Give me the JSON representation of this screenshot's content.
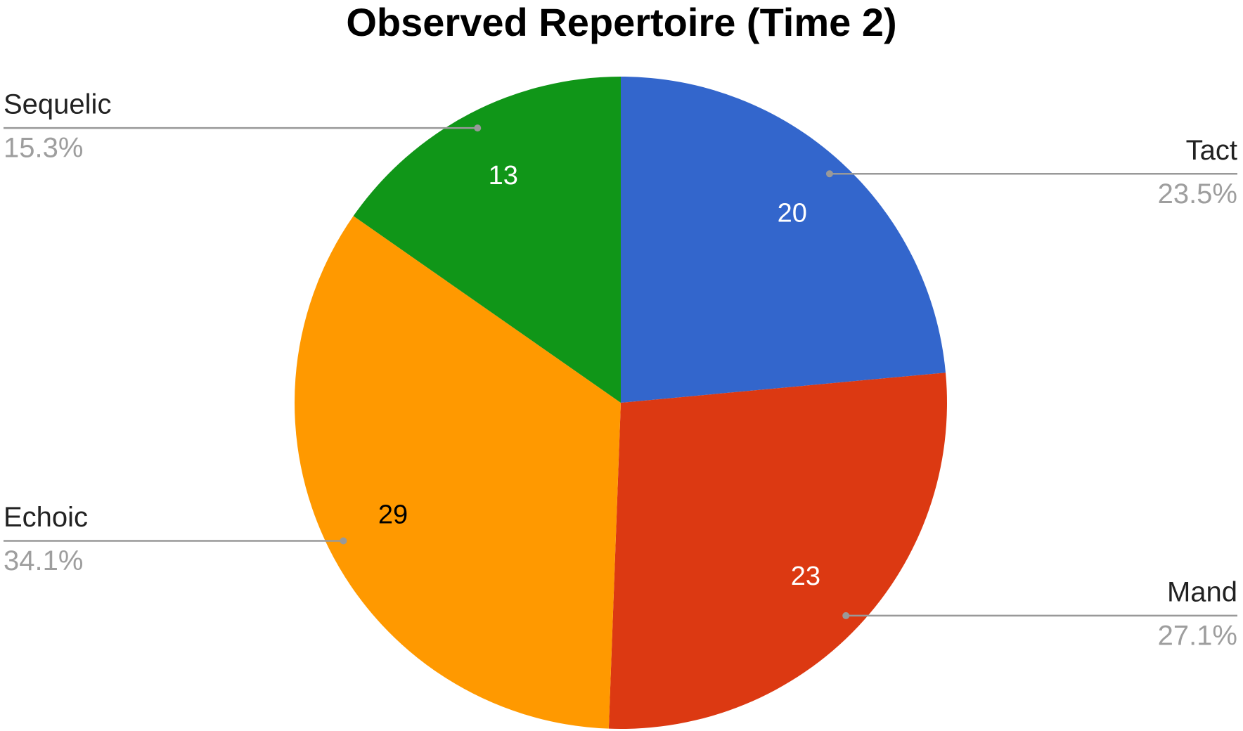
{
  "chart_data": {
    "type": "pie",
    "title": "Observed Repertoire (Time 2)",
    "categories": [
      "Tact",
      "Mand",
      "Echoic",
      "Sequelic"
    ],
    "values": [
      20,
      23,
      29,
      13
    ],
    "percent_labels": [
      "23.5%",
      "27.1%",
      "34.1%",
      "15.3%"
    ],
    "colors": [
      "#3366cc",
      "#dc3912",
      "#ff9900",
      "#109618"
    ]
  }
}
